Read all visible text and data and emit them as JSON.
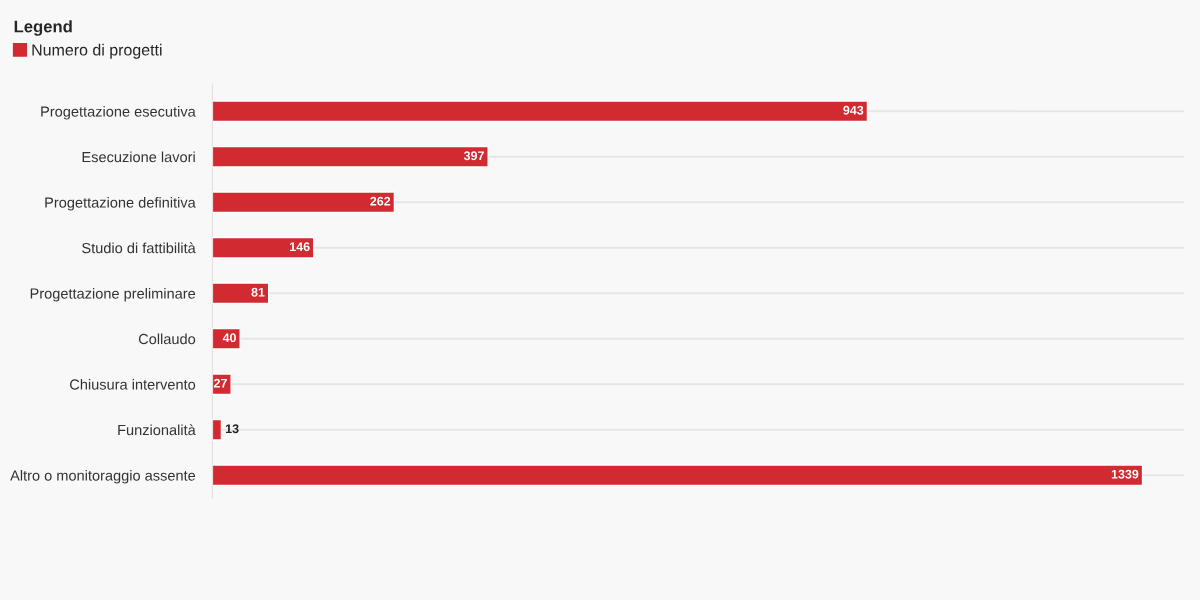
{
  "chart_data": {
    "type": "bar",
    "orientation": "horizontal",
    "categories": [
      "Progettazione esecutiva",
      "Esecuzione lavori",
      "Progettazione definitiva",
      "Studio di fattibilità",
      "Progettazione preliminare",
      "Collaudo",
      "Chiusura intervento",
      "Funzionalità",
      "Altro o monitoraggio assente"
    ],
    "series": [
      {
        "name": "Numero di progetti",
        "color": "#d12a30",
        "values": [
          943,
          397,
          262,
          146,
          81,
          40,
          27,
          13,
          1339
        ]
      }
    ],
    "legend_title": "Legend",
    "legend": "top left",
    "data_labels": true,
    "grid": "y",
    "tick_labels": "y"
  }
}
